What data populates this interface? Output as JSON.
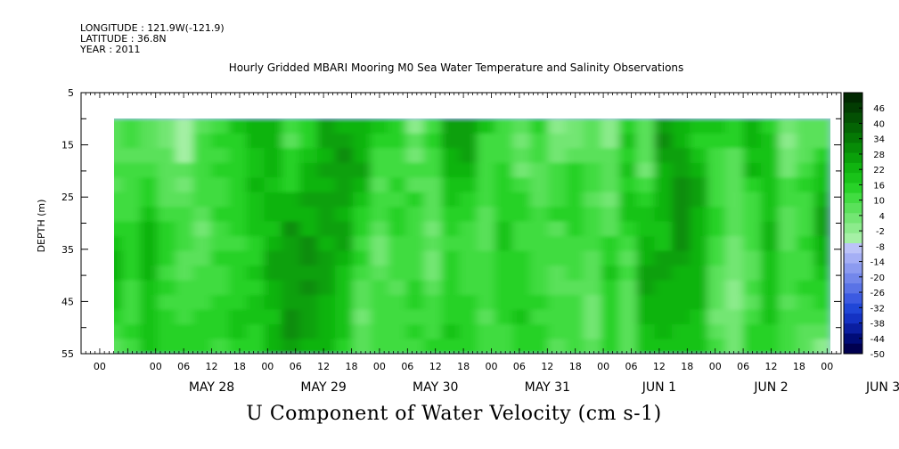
{
  "header": {
    "longitude": "LONGITUDE : 121.9W(-121.9)",
    "latitude": "LATITUDE : 36.8N",
    "year": "YEAR : 2011"
  },
  "chart_data": {
    "type": "heatmap",
    "title": "Hourly Gridded MBARI Mooring M0 Sea Water Temperature and Salinity Observations",
    "footer_title": "U Component of Water Velocity (cm s-1)",
    "ylabel": "DEPTH (m)",
    "ylim": [
      5,
      55
    ],
    "y_inverted": true,
    "y_ticks": [
      5,
      15,
      25,
      35,
      45,
      55
    ],
    "y_data_range": [
      10,
      55
    ],
    "x_day_labels": [
      "MAY 28",
      "MAY 29",
      "MAY 30",
      "MAY 31",
      "JUN  1",
      "JUN  2",
      "JUN  3"
    ],
    "x_hour_labels": [
      "00",
      "06",
      "12",
      "18"
    ],
    "x_leading_hour_label": "00",
    "x_range_hours": [
      -16,
      147
    ],
    "x_data_range_hours": [
      -11,
      145
    ],
    "colorbar": {
      "labels": [
        46,
        40,
        34,
        28,
        22,
        16,
        10,
        4,
        -2,
        -8,
        -14,
        -20,
        -26,
        -32,
        -38,
        -44,
        -50
      ],
      "range": [
        -50,
        52
      ],
      "step": 3,
      "colors": [
        "#000050",
        "#000c78",
        "#0a1ea0",
        "#1432c3",
        "#2046d7",
        "#3c5ae1",
        "#5a73e6",
        "#7387eb",
        "#8c9bf0",
        "#a5aff5",
        "#bcc3f8",
        "#a5f0a5",
        "#8ceb8c",
        "#73e673",
        "#5ae15a",
        "#41dc41",
        "#28d228",
        "#19c319",
        "#10b410",
        "#0aa00a",
        "#078c07",
        "#057805",
        "#046404",
        "#035003",
        "#023c02",
        "#012801"
      ]
    },
    "colormap_values": [
      [
        -6.0,
        -3.1,
        -6.9,
        -8.2,
        -15.5,
        -6.8,
        -2.9,
        2.4,
        5.9,
        6.6,
        -4.4,
        -0.3,
        9.4,
        6.8,
        6.6,
        3.2,
        -0.6,
        -11.2,
        -2.1,
        8.1,
        8.7,
        2.5,
        -4.7,
        -5.5,
        0.5,
        -12.1,
        -8.9,
        -5.1,
        -12.3,
        -0.7,
        -5.7,
        8.1,
        5.5,
        1.8,
        2.8,
        -0.5,
        6.7,
        0.0,
        -10.9,
        -7.5,
        -5.6
      ],
      [
        -7.8,
        -3.2,
        -7.9,
        -10.0,
        -15.2,
        -5.0,
        -2.0,
        -0.1,
        4.1,
        6.5,
        -5.9,
        -1.0,
        7.9,
        9.7,
        4.9,
        0.6,
        -1.6,
        -7.5,
        -2.0,
        8.8,
        8.7,
        -2.5,
        -3.1,
        -8.1,
        -2.5,
        -9.7,
        -8.2,
        -6.6,
        -12.9,
        2.3,
        -5.3,
        10.6,
        6.5,
        -0.4,
        0.7,
        -1.3,
        4.1,
        2.7,
        -11.1,
        -5.8,
        -5.2
      ],
      [
        -6.6,
        -5.8,
        -6.2,
        -6.6,
        -14.6,
        -3.1,
        -2.8,
        -0.5,
        1.7,
        5.1,
        -0.7,
        3.1,
        4.6,
        11.4,
        6.7,
        -3.8,
        -3.7,
        -8.3,
        -2.9,
        6.4,
        8.8,
        -3.0,
        -2.6,
        -6.2,
        -3.3,
        -8.4,
        -5.2,
        -6.3,
        -6.7,
        -0.4,
        -7.1,
        8.8,
        9.7,
        1.5,
        -3.7,
        -5.6,
        3.8,
        3.1,
        -10.8,
        -7.0,
        -1.0
      ],
      [
        -3.5,
        -4.7,
        -3.4,
        -7.1,
        -8.0,
        -4.8,
        0.4,
        -0.4,
        2.3,
        5.3,
        -0.2,
        4.5,
        7.1,
        9.7,
        7.1,
        -4.9,
        -3.2,
        -4.4,
        -2.9,
        6.8,
        6.7,
        -3.8,
        -0.6,
        -8.7,
        -6.2,
        -4.2,
        -1.4,
        -4.9,
        -7.4,
        1.2,
        -8.1,
        5.3,
        9.9,
        6.7,
        -2.2,
        -7.8,
        4.5,
        1.4,
        -8.3,
        -3.2,
        1.7
      ],
      [
        -6.1,
        -4.4,
        0.6,
        -7.9,
        -9.4,
        -4.1,
        -2.9,
        0.0,
        4.6,
        2.1,
        0.8,
        5.1,
        5.7,
        7.3,
        4.4,
        -6.2,
        -1.8,
        -5.6,
        -6.3,
        3.8,
        1.8,
        -3.9,
        0.7,
        -2.4,
        -5.1,
        -3.5,
        -1.4,
        -4.0,
        -7.0,
        -1.8,
        -3.6,
        5.7,
        12.8,
        7.1,
        -2.2,
        -6.1,
        0.9,
        3.1,
        -4.2,
        -1.4,
        1.7
      ],
      [
        -4.4,
        -3.3,
        0.3,
        -5.3,
        -5.4,
        -4.6,
        -3.2,
        -0.4,
        2.6,
        4.3,
        5.1,
        7.6,
        7.9,
        8.3,
        2.5,
        -4.8,
        -2.9,
        -1.6,
        -6.3,
        1.0,
        0.6,
        -2.2,
        0.3,
        -1.1,
        -6.7,
        -2.1,
        -0.2,
        -7.0,
        -8.5,
        1.7,
        -1.8,
        4.0,
        10.6,
        7.4,
        -3.7,
        -7.3,
        -2.5,
        2.4,
        -4.8,
        -4.7,
        5.3
      ],
      [
        -2.3,
        -2.2,
        1.9,
        -2.1,
        -4.1,
        -5.5,
        -0.7,
        -0.1,
        1.6,
        4.6,
        6.3,
        5.5,
        8.4,
        6.8,
        -0.5,
        -5.0,
        -1.7,
        -3.9,
        -6.8,
        0.3,
        -1.0,
        -5.6,
        -0.3,
        -0.7,
        -4.6,
        -1.2,
        -1.4,
        -4.1,
        -8.0,
        1.9,
        1.8,
        5.3,
        10.1,
        6.2,
        -1.4,
        -7.6,
        -4.3,
        1.8,
        -7.2,
        -3.6,
        7.1
      ],
      [
        0.9,
        0.4,
        6.2,
        -1.1,
        -3.7,
        -8.2,
        -4.1,
        -1.3,
        1.4,
        3.4,
        10.2,
        5.8,
        9.0,
        9.5,
        -1.8,
        -6.3,
        -0.5,
        -4.7,
        -8.2,
        0.1,
        -3.2,
        -7.7,
        2.0,
        -2.4,
        -4.7,
        -5.6,
        -0.1,
        -2.2,
        -6.4,
        -0.7,
        2.3,
        3.0,
        11.1,
        5.4,
        -1.5,
        -7.1,
        -3.3,
        4.2,
        -6.8,
        -2.8,
        7.7
      ],
      [
        2.9,
        0.6,
        4.0,
        -0.9,
        -4.9,
        -5.7,
        -2.4,
        -3.2,
        -1.2,
        5.3,
        9.3,
        10.1,
        6.3,
        8.1,
        -3.0,
        -8.1,
        -3.4,
        -4.3,
        -5.5,
        -2.3,
        -3.8,
        -5.6,
        2.6,
        -4.5,
        -2.8,
        -3.4,
        -3.2,
        -3.7,
        -1.0,
        -3.9,
        4.8,
        3.5,
        10.2,
        6.4,
        -3.2,
        -9.9,
        -4.7,
        4.8,
        -5.8,
        0.3,
        4.8
      ],
      [
        5.2,
        -1.0,
        4.3,
        -0.5,
        -7.2,
        -7.2,
        -1.9,
        -1.9,
        -1.4,
        7.6,
        8.4,
        11.3,
        8.5,
        5.1,
        -0.6,
        -8.3,
        -4.9,
        -2.1,
        -8.6,
        -0.4,
        -3.6,
        -2.4,
        0.9,
        -1.9,
        -3.5,
        -4.1,
        -2.3,
        -6.5,
        0.8,
        -6.0,
        5.0,
        7.7,
        7.1,
        5.9,
        -2.8,
        -9.9,
        -6.0,
        3.0,
        -4.8,
        -2.5,
        5.3
      ],
      [
        4.5,
        -1.6,
        5.6,
        -3.4,
        -5.9,
        -4.3,
        -2.2,
        -1.6,
        1.4,
        7.0,
        7.6,
        9.2,
        9.4,
        1.4,
        -2.9,
        -5.8,
        -4.2,
        -2.2,
        -9.3,
        0.3,
        -3.7,
        -3.0,
        0.3,
        -0.1,
        -2.2,
        -6.1,
        -3.2,
        -7.5,
        1.1,
        -4.0,
        8.0,
        7.2,
        5.6,
        6.0,
        -6.0,
        -9.7,
        -5.3,
        3.8,
        -4.6,
        -2.5,
        2.8
      ],
      [
        2.1,
        -3.5,
        3.3,
        -2.0,
        -3.1,
        -4.6,
        -2.9,
        -0.8,
        0.8,
        6.4,
        9.7,
        11.4,
        7.4,
        1.1,
        -5.2,
        -3.8,
        -6.3,
        -1.6,
        -5.9,
        -0.7,
        -2.3,
        -4.7,
        -1.6,
        -1.7,
        -2.6,
        -5.2,
        -5.8,
        -6.8,
        -0.4,
        -5.3,
        7.5,
        6.2,
        6.9,
        5.1,
        -5.7,
        -11.9,
        -4.9,
        3.1,
        -4.2,
        -1.1,
        0.9
      ],
      [
        2.4,
        -3.8,
        1.2,
        -2.4,
        -2.2,
        -4.3,
        -1.7,
        0.6,
        1.8,
        4.3,
        8.6,
        7.7,
        6.1,
        2.1,
        -6.7,
        -3.0,
        -4.2,
        -1.7,
        -4.5,
        -1.4,
        -2.0,
        -3.7,
        -0.4,
        0.3,
        -1.2,
        -3.8,
        -4.7,
        -8.9,
        -0.9,
        -7.2,
        6.8,
        4.5,
        6.9,
        6.0,
        -7.1,
        -11.9,
        -5.2,
        2.4,
        -5.1,
        -3.6,
        -0.7
      ],
      [
        -0.3,
        -2.2,
        1.1,
        -0.8,
        -2.1,
        -0.7,
        -1.8,
        1.0,
        1.5,
        3.3,
        11.6,
        7.3,
        4.5,
        1.8,
        -8.1,
        -2.4,
        -4.5,
        -2.1,
        -2.4,
        -0.8,
        -1.7,
        -6.7,
        -0.4,
        1.9,
        -2.2,
        -3.9,
        -3.0,
        -8.4,
        -1.4,
        -5.6,
        5.5,
        6.5,
        5.1,
        3.9,
        -8.1,
        -10.8,
        -2.3,
        1.1,
        -3.5,
        -4.4,
        -3.6
      ],
      [
        -2.8,
        -2.0,
        1.4,
        -1.6,
        -0.1,
        -1.6,
        -1.4,
        1.3,
        0.6,
        4.6,
        11.7,
        9.4,
        4.3,
        2.3,
        -5.2,
        -3.4,
        -3.5,
        -1.3,
        -3.1,
        1.5,
        -1.7,
        -4.0,
        -4.1,
        -0.1,
        -1.6,
        -4.5,
        -3.3,
        -10.7,
        -0.3,
        -6.8,
        3.4,
        4.2,
        3.4,
        2.0,
        -5.2,
        -10.1,
        -1.8,
        0.0,
        -3.5,
        -5.9,
        -7.0
      ],
      [
        -5.1,
        -3.5,
        3.8,
        -1.1,
        -1.1,
        -1.4,
        -4.4,
        0.5,
        -0.5,
        5.3,
        9.1,
        6.7,
        6.0,
        -0.7,
        -6.4,
        -3.4,
        -4.0,
        -2.7,
        -1.9,
        -0.8,
        -0.2,
        -4.1,
        -2.2,
        -0.4,
        -1.3,
        -7.7,
        -4.6,
        -8.0,
        -0.8,
        -6.6,
        1.5,
        2.9,
        1.8,
        2.3,
        -4.3,
        -9.3,
        0.2,
        0.4,
        -4.0,
        -7.9,
        -11.4
      ]
    ]
  }
}
